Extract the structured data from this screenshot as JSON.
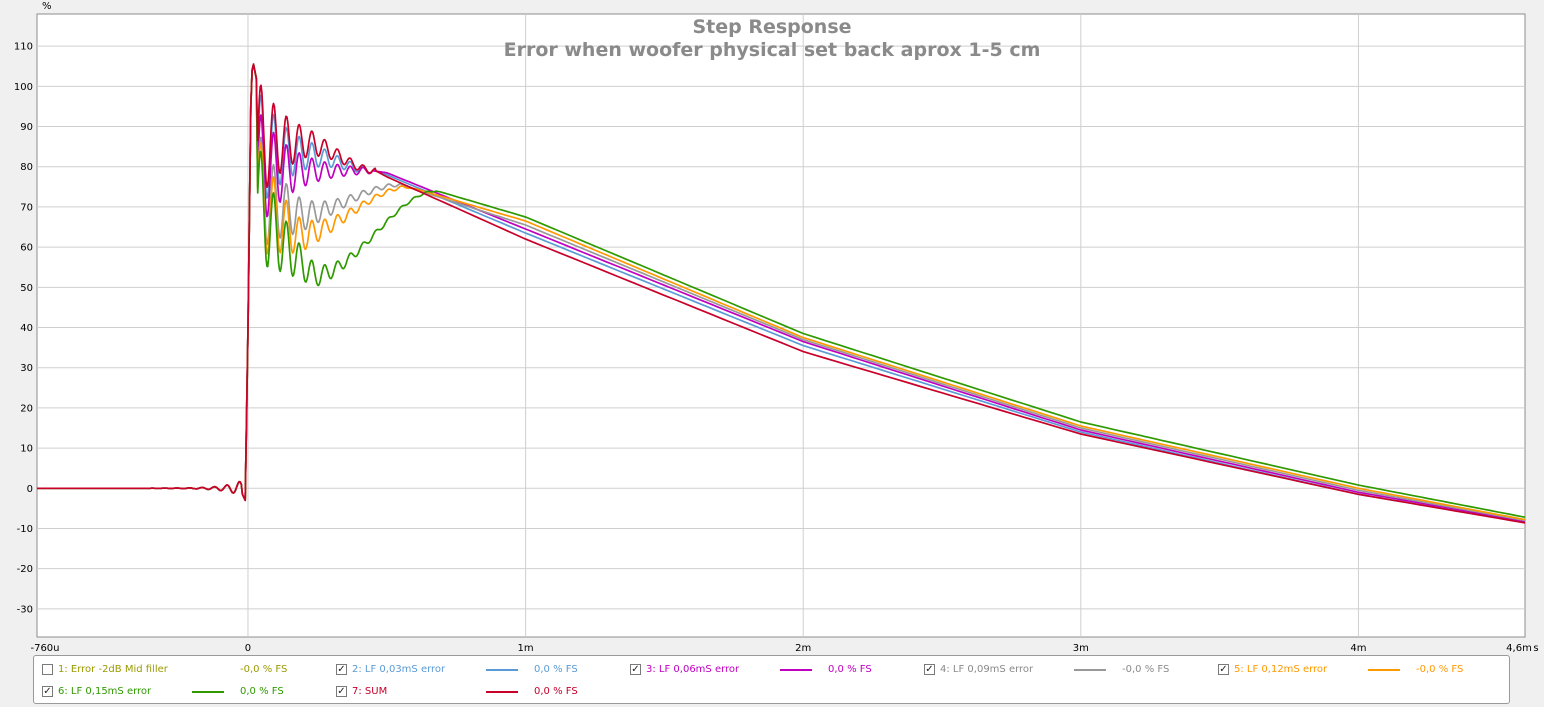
{
  "chart_data": {
    "type": "line",
    "title": "Step Response",
    "subtitle": "Error when woofer physical set back aprox 1-5 cm",
    "x_unit": "s",
    "xlim": [
      -0.76,
      4.6
    ],
    "ylim": [
      -37,
      118
    ],
    "x_ticks": [
      {
        "value": -0.76,
        "label": "-760u"
      },
      {
        "value": 0,
        "label": "0"
      },
      {
        "value": 1,
        "label": "1m"
      },
      {
        "value": 2,
        "label": "2m"
      },
      {
        "value": 3,
        "label": "3m"
      },
      {
        "value": 4,
        "label": "4m"
      },
      {
        "value": 4.6,
        "label": "4,6m"
      }
    ],
    "y_ticks": [
      110,
      100,
      90,
      80,
      70,
      60,
      50,
      40,
      30,
      20,
      10,
      0,
      -10,
      -20,
      -30
    ],
    "grid": true,
    "legend_position": "bottom",
    "series": [
      {
        "name": "1: Error -2dB Mid filler",
        "fs": "-0,0 % FS",
        "checked": false,
        "color": "#9a9a20",
        "visible": false,
        "plateau": 79,
        "valley": 79,
        "valley_x": 0.2,
        "merge_x": 0.45,
        "post_peak": 79,
        "amp": 1.0,
        "points": []
      },
      {
        "name": "2: LF 0,03mS error",
        "fs": "0,0 % FS",
        "checked": true,
        "color": "#5b9bd5",
        "visible": true,
        "plateau": 84,
        "valley": 83,
        "valley_x": 0.2,
        "merge_x": 0.46,
        "post_peak": 79,
        "amp": 1.0,
        "points": [
          [
            0.5,
            78
          ],
          [
            1.0,
            63.5
          ],
          [
            2.0,
            35.5
          ],
          [
            3.0,
            14
          ],
          [
            4.0,
            -1.5
          ],
          [
            4.6,
            -8.5
          ]
        ]
      },
      {
        "name": "3: LF 0,06mS error",
        "fs": "0,0 % FS",
        "checked": true,
        "color": "#c000c0",
        "visible": true,
        "plateau": 79,
        "valley": 79,
        "valley_x": 0.2,
        "merge_x": 0.45,
        "post_peak": 79,
        "amp": 1.0,
        "points": [
          [
            0.5,
            78.5
          ],
          [
            1.0,
            64.5
          ],
          [
            2.0,
            36.5
          ],
          [
            3.0,
            14.5
          ],
          [
            4.0,
            -1.0
          ],
          [
            4.6,
            -8.2
          ]
        ]
      },
      {
        "name": "4: LF 0,09mS error",
        "fs": "-0,0 % FS",
        "checked": true,
        "color": "#999999",
        "visible": true,
        "plateau": 75,
        "valley": 68,
        "valley_x": 0.18,
        "merge_x": 0.55,
        "post_peak": 75.5,
        "amp": 1.0,
        "points": [
          [
            0.55,
            75.5
          ],
          [
            1.0,
            65.5
          ],
          [
            2.0,
            37
          ],
          [
            3.0,
            15
          ],
          [
            4.0,
            -0.5
          ],
          [
            4.6,
            -8.0
          ]
        ]
      },
      {
        "name": "5: LF 0,12mS error",
        "fs": "-0,0 % FS",
        "checked": true,
        "color": "#ff9900",
        "visible": true,
        "plateau": 74.5,
        "valley": 63,
        "valley_x": 0.18,
        "merge_x": 0.58,
        "post_peak": 75,
        "amp": 1.0,
        "points": [
          [
            0.58,
            75
          ],
          [
            1.0,
            66.5
          ],
          [
            2.0,
            37.5
          ],
          [
            3.0,
            15.5
          ],
          [
            4.0,
            0
          ],
          [
            4.6,
            -7.8
          ]
        ]
      },
      {
        "name": "6: LF 0,15mS error",
        "fs": "0,0 % FS",
        "checked": true,
        "color": "#2e9a00",
        "visible": true,
        "plateau": 73.5,
        "valley": 53,
        "valley_x": 0.24,
        "merge_x": 0.68,
        "post_peak": 74,
        "amp": 1.0,
        "points": [
          [
            0.68,
            74
          ],
          [
            1.0,
            67.5
          ],
          [
            2.0,
            38.5
          ],
          [
            3.0,
            16.5
          ],
          [
            4.0,
            0.8
          ],
          [
            4.6,
            -7.2
          ]
        ]
      },
      {
        "name": "7: SUM",
        "fs": "0,0 % FS",
        "checked": true,
        "color": "#c8002a",
        "visible": true,
        "plateau": 86.5,
        "valley": 86,
        "valley_x": 0.2,
        "merge_x": 0.46,
        "post_peak": 79,
        "amp": 1.0,
        "points": [
          [
            0.5,
            77.5
          ],
          [
            1.0,
            62
          ],
          [
            2.0,
            34
          ],
          [
            3.0,
            13.5
          ],
          [
            4.0,
            -1.5
          ],
          [
            4.6,
            -8.6
          ]
        ]
      }
    ]
  }
}
